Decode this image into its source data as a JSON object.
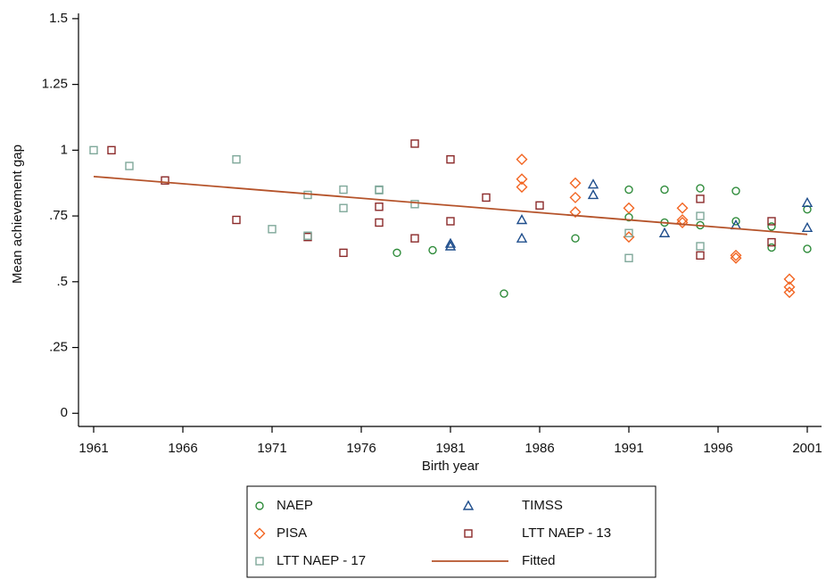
{
  "chart_data": {
    "type": "scatter",
    "xlabel": "Birth year",
    "ylabel": "Mean achievement gap",
    "xlim": [
      1960.15,
      2001.8
    ],
    "xticks": [
      1961,
      1966,
      1971,
      1976,
      1981,
      1986,
      1991,
      1996,
      2001
    ],
    "ylim": [
      -0.05,
      1.52
    ],
    "yticks": [
      0,
      {
        "value": 0.25,
        "label": ".25"
      },
      {
        "value": 0.5,
        "label": ".5"
      },
      {
        "value": 0.75,
        "label": ".75"
      },
      1,
      1.25,
      1.5
    ],
    "series": [
      {
        "name": "NAEP",
        "marker": "circle",
        "color": "#2e8b3a",
        "x": [
          1978,
          1980,
          1984,
          1988,
          1991,
          1991,
          1993,
          1993,
          1995,
          1995,
          1997,
          1997,
          1999,
          1999,
          2001,
          2001
        ],
        "values": [
          0.61,
          0.62,
          0.455,
          0.665,
          0.85,
          0.745,
          0.85,
          0.725,
          0.855,
          0.715,
          0.845,
          0.73,
          0.71,
          0.63,
          0.775,
          0.625
        ]
      },
      {
        "name": "TIMSS",
        "marker": "triangle",
        "color": "#1f4e8c",
        "x": [
          1981,
          1981,
          1985,
          1985,
          1989,
          1989,
          1993,
          1997,
          2001,
          2001
        ],
        "values": [
          0.645,
          0.635,
          0.735,
          0.665,
          0.87,
          0.83,
          0.685,
          0.715,
          0.8,
          0.705
        ]
      },
      {
        "name": "PISA",
        "marker": "diamond",
        "color": "#f26522",
        "x": [
          1985,
          1985,
          1985,
          1988,
          1988,
          1988,
          1991,
          1991,
          1994,
          1994,
          1994,
          1997,
          1997,
          2000,
          2000,
          2000
        ],
        "values": [
          0.965,
          0.89,
          0.86,
          0.875,
          0.82,
          0.765,
          0.78,
          0.67,
          0.78,
          0.735,
          0.725,
          0.6,
          0.59,
          0.51,
          0.48,
          0.46
        ]
      },
      {
        "name": "LTT NAEP - 13",
        "marker": "square",
        "color": "#8b2a2a",
        "x": [
          1962,
          1965,
          1969,
          1973,
          1975,
          1977,
          1977,
          1979,
          1979,
          1981,
          1981,
          1983,
          1986,
          1995,
          1995,
          1999,
          1999
        ],
        "values": [
          1.0,
          0.885,
          0.735,
          0.67,
          0.61,
          0.785,
          0.725,
          1.025,
          0.665,
          0.965,
          0.73,
          0.82,
          0.79,
          0.815,
          0.6,
          0.73,
          0.65
        ]
      },
      {
        "name": "LTT NAEP - 17",
        "marker": "square",
        "color": "#7fa89a",
        "x": [
          1961,
          1963,
          1969,
          1971,
          1973,
          1973,
          1975,
          1975,
          1977,
          1977,
          1979,
          1991,
          1991,
          1995,
          1995
        ],
        "values": [
          1.0,
          0.94,
          0.965,
          0.7,
          0.83,
          0.675,
          0.85,
          0.78,
          0.85,
          0.848,
          0.795,
          0.685,
          0.59,
          0.75,
          0.635
        ]
      },
      {
        "name": "Fitted",
        "marker": "line",
        "color": "#b5532a",
        "x": [
          1961,
          2001
        ],
        "values": [
          0.9,
          0.68
        ]
      }
    ]
  }
}
